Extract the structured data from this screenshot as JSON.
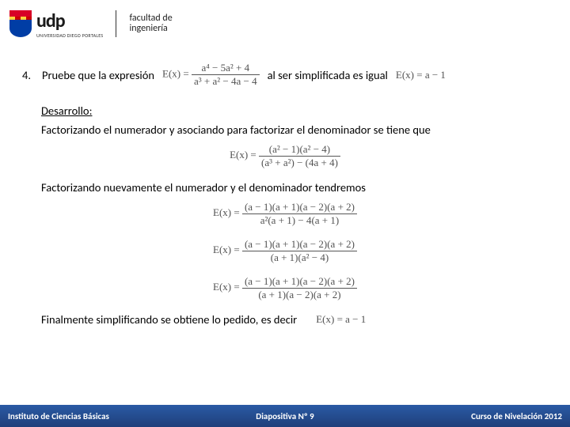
{
  "header": {
    "logo_text": "udp",
    "logo_sub": "UNIVERSIDAD DIEGO PORTALES",
    "faculty_line1": "facultad de",
    "faculty_line2": "ingeniería"
  },
  "problem": {
    "number": "4.",
    "intro_a": "Pruebe que la expresión",
    "expr_label": "E(x) =",
    "frac1_num": "a⁴ − 5a² + 4",
    "frac1_den": "a³ + a² − 4a − 4",
    "intro_b": "al ser simplificada es igual",
    "result_expr": "E(x) = a − 1"
  },
  "development": {
    "heading": "Desarrollo:",
    "step1_text": "Factorizando el numerador y asociando para factorizar el denominador se tiene que",
    "eq1_label": "E(x) =",
    "eq1_num": "(a² − 1)(a² − 4)",
    "eq1_den": "(a³ + a²) − (4a + 4)",
    "step2_text": "Factorizando nuevamente el numerador y el denominador tendremos",
    "eq2_label": "E(x) =",
    "eq2_num": "(a − 1)(a + 1)(a − 2)(a + 2)",
    "eq2_den": "a²(a + 1) − 4(a + 1)",
    "eq3_label": "E(x) =",
    "eq3_num": "(a − 1)(a + 1)(a − 2)(a + 2)",
    "eq3_den": "(a + 1)(a² − 4)",
    "eq4_label": "E(x) =",
    "eq4_num": "(a − 1)(a + 1)(a − 2)(a + 2)",
    "eq4_den": "(a + 1)(a − 2)(a + 2)",
    "final_text": "Finalmente simplificando se obtiene lo pedido, es decir",
    "final_expr": "E(x) = a − 1"
  },
  "footer": {
    "left": "Instituto de Ciencias Básicas",
    "center": "Diapositiva Nº 9",
    "right": "Curso de Nivelación 2012"
  },
  "colors": {
    "footer_bg_top": "#2a5aa5",
    "footer_bg_bot": "#1f3f7a",
    "eq_color": "#525252"
  }
}
